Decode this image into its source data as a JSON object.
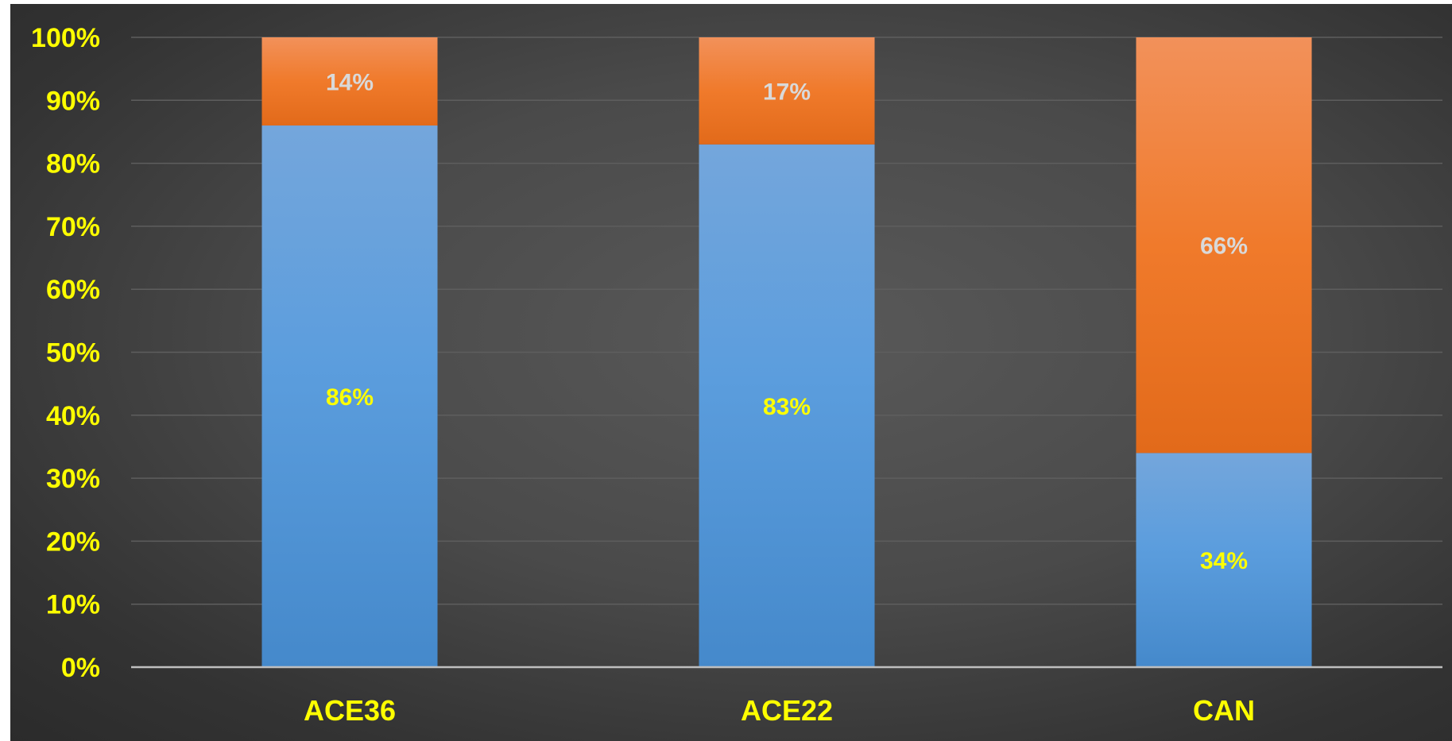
{
  "chart_data": {
    "type": "bar",
    "stacked": true,
    "percent_stacked": true,
    "categories": [
      "ACE36",
      "ACE22",
      "CAN"
    ],
    "series": [
      {
        "values": [
          86,
          83,
          34
        ],
        "labels": [
          "86%",
          "83%",
          "34%"
        ],
        "color": "#5b9bd5",
        "label_color": "#ffff00"
      },
      {
        "values": [
          14,
          17,
          66
        ],
        "labels": [
          "14%",
          "17%",
          "66%"
        ],
        "color": "#ed7d31",
        "label_color": "#d9d9d9"
      }
    ],
    "y_ticks": [
      "0%",
      "10%",
      "20%",
      "30%",
      "40%",
      "50%",
      "60%",
      "70%",
      "80%",
      "90%",
      "100%"
    ],
    "ylim": [
      0,
      100
    ],
    "grid": true,
    "legend": "none",
    "title": "",
    "xlabel": "",
    "ylabel": ""
  },
  "colors": {
    "axis_text": "#ffff00",
    "gridline": "#5e5e5e",
    "axis_line": "#bfbfbf",
    "background": "#3f3f3f"
  }
}
